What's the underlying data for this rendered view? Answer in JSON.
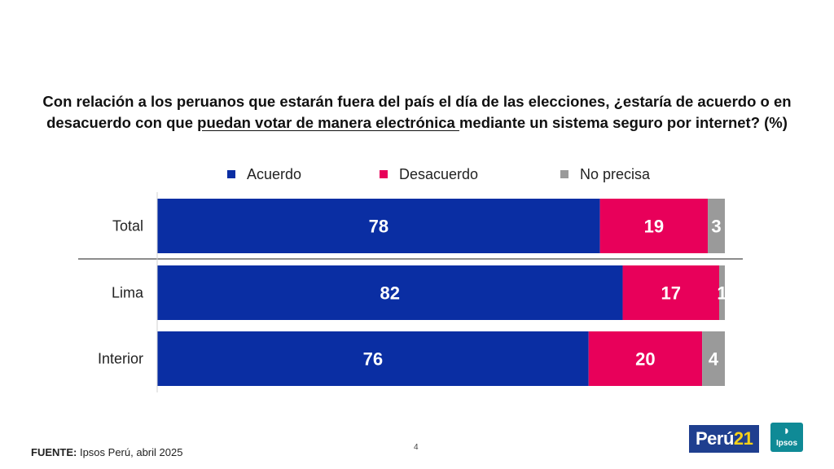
{
  "title": {
    "part1": "Con relación a los peruanos que estarán fuera del país el día de las elecciones, ¿estaría de acuerdo o en desacuerdo con que ",
    "underlined": "puedan votar de manera electrónica ",
    "part2": "mediante un sistema seguro por internet? (%)"
  },
  "chart_data": {
    "type": "bar",
    "orientation": "horizontal-stacked",
    "categories": [
      "Total",
      "Lima",
      "Interior"
    ],
    "series": [
      {
        "name": "Acuerdo",
        "values": [
          78,
          82,
          76
        ],
        "color": "#0a2ea3"
      },
      {
        "name": "Desacuerdo",
        "values": [
          19,
          17,
          20
        ],
        "color": "#e8005a"
      },
      {
        "name": "No precisa",
        "values": [
          3,
          1,
          4
        ],
        "color": "#9a9a9a"
      }
    ],
    "xlim": [
      0,
      100
    ],
    "legend": "top"
  },
  "footer": {
    "label": "FUENTE:",
    "text": "Ipsos Perú, abril 2025"
  },
  "page_number": "4",
  "logos": {
    "peru21_text": "Perú",
    "peru21_num": "21",
    "ipsos_text": "Ipsos"
  }
}
